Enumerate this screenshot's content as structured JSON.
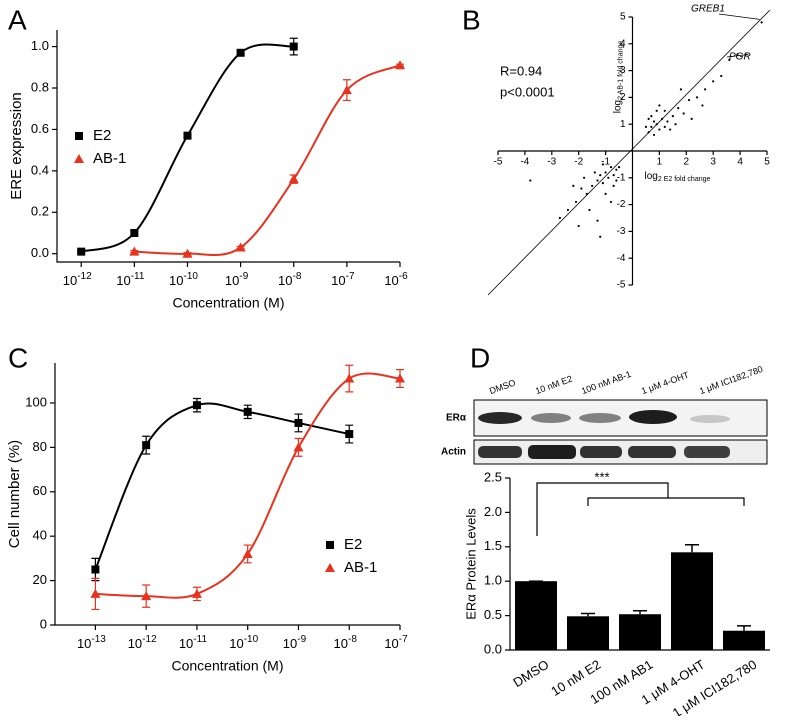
{
  "chart_data": [
    {
      "type": "line",
      "label": "A",
      "xlabel": "Concentration (M)",
      "ylabel": "ERE expression",
      "xscale": "log",
      "xlim": [
        3.5e-13,
        1e-06
      ],
      "ylim": [
        -0.04,
        1.08
      ],
      "xticks": [
        {
          "value": 1e-12,
          "label": "10-12"
        },
        {
          "value": 1e-11,
          "label": "10-11"
        },
        {
          "value": 1e-10,
          "label": "10-10"
        },
        {
          "value": 1e-09,
          "label": "10-9"
        },
        {
          "value": 1e-08,
          "label": "10-8"
        },
        {
          "value": 1e-07,
          "label": "10-7"
        },
        {
          "value": 1e-06,
          "label": "10-6"
        }
      ],
      "yticks": [
        {
          "value": 0,
          "label": "0.0"
        },
        0.2,
        0.4,
        0.6,
        0.8,
        {
          "value": 1,
          "label": "1.0"
        }
      ],
      "legend": "center left",
      "series": [
        {
          "name": "E2",
          "color": "#000000",
          "marker": "square",
          "x": [
            1e-12,
            1e-11,
            1e-10,
            1e-09,
            1e-08
          ],
          "values": [
            0.01,
            0.1,
            0.57,
            0.97,
            1.0
          ],
          "errors": [
            0.005,
            0.01,
            0.01,
            0.01,
            0.04
          ]
        },
        {
          "name": "AB-1",
          "color": "#e8321e",
          "marker": "triangle",
          "x": [
            1e-11,
            1e-10,
            1e-09,
            1e-08,
            1e-07,
            1e-06
          ],
          "values": [
            0.01,
            0.0,
            0.03,
            0.36,
            0.79,
            0.91
          ],
          "errors": [
            0.005,
            0.005,
            0.005,
            0.02,
            0.05,
            0.005
          ]
        }
      ]
    },
    {
      "type": "scatter",
      "label": "B",
      "xlabel": "log2 E2 fold change",
      "ylabel": "log2 AB-1 fold change",
      "xlim": [
        -5,
        5
      ],
      "ylim": [
        -5,
        5
      ],
      "xticks": [
        -5,
        -4,
        -3,
        -2,
        -1,
        1,
        2,
        3,
        4,
        5
      ],
      "yticks": [
        -5,
        -4,
        -3,
        -2,
        -1,
        1,
        2,
        3,
        4,
        5
      ],
      "annotations": [
        "R=0.94",
        "p<0.0001",
        "GREB1",
        "PGR"
      ],
      "color": "#000000",
      "x": [
        0.6,
        0.7,
        0.8,
        0.9,
        1.0,
        1.1,
        1.2,
        0.7,
        0.9,
        1.3,
        1.5,
        1.4,
        1.7,
        1.9,
        2.1,
        2.4,
        2.7,
        3.0,
        3.3,
        2.2,
        1.8,
        1.0,
        0.8,
        1.6,
        2.6,
        3.6,
        3.9,
        0.6,
        1.2,
        0.5,
        -0.6,
        -0.7,
        -0.8,
        -0.9,
        -1.0,
        -1.1,
        -1.2,
        -0.7,
        -1.3,
        -1.5,
        -1.4,
        -1.7,
        -1.9,
        -2.1,
        -2.4,
        -2.7,
        -1.6,
        -1.0,
        -0.8,
        -1.8,
        -2.2,
        -0.6,
        -1.3,
        -1.1,
        -3.8,
        -1.2,
        -2.0,
        -0.5,
        4.8,
        4.2
      ],
      "y": [
        0.7,
        0.9,
        0.6,
        1.0,
        0.8,
        1.2,
        0.9,
        1.3,
        1.5,
        1.1,
        1.3,
        0.8,
        1.6,
        1.4,
        1.9,
        2.0,
        2.3,
        2.6,
        2.8,
        1.2,
        2.3,
        1.7,
        1.1,
        1.0,
        1.7,
        3.4,
        3.6,
        1.2,
        1.5,
        0.9,
        -0.7,
        -0.9,
        -0.6,
        -1.0,
        -0.8,
        -1.2,
        -0.9,
        -1.3,
        -1.1,
        -1.3,
        -0.8,
        -1.6,
        -1.4,
        -1.9,
        -2.2,
        -2.5,
        -2.2,
        -1.6,
        -1.9,
        -1.0,
        -1.3,
        -1.1,
        -2.6,
        -0.5,
        -1.1,
        -3.2,
        -2.8,
        -0.6,
        4.8,
        3.6
      ]
    },
    {
      "type": "line",
      "label": "C",
      "xlabel": "Concentration (M)",
      "ylabel": "Cell number (%)",
      "xscale": "log",
      "xlim": [
        1.6e-14,
        1e-07
      ],
      "ylim": [
        0,
        118
      ],
      "xticks": [
        {
          "value": 1e-13,
          "label": "10-13"
        },
        {
          "value": 1e-12,
          "label": "10-12"
        },
        {
          "value": 1e-11,
          "label": "10-11"
        },
        {
          "value": 1e-10,
          "label": "10-10"
        },
        {
          "value": 1e-09,
          "label": "10-9"
        },
        {
          "value": 1e-08,
          "label": "10-8"
        },
        {
          "value": 1e-07,
          "label": "10-7"
        }
      ],
      "yticks": [
        0,
        20,
        40,
        60,
        80,
        100
      ],
      "legend": "lower right",
      "series": [
        {
          "name": "E2",
          "color": "#000000",
          "marker": "square",
          "x": [
            1e-13,
            1e-12,
            1e-11,
            1e-10,
            1e-09,
            1e-08
          ],
          "values": [
            25,
            81,
            99,
            96,
            91,
            86
          ],
          "errors": [
            5,
            4,
            3,
            3,
            4,
            4
          ]
        },
        {
          "name": "AB-1",
          "color": "#e8321e",
          "marker": "triangle",
          "x": [
            1e-13,
            1e-12,
            1e-11,
            1e-10,
            1e-09,
            1e-08,
            1e-07
          ],
          "values": [
            14,
            13,
            14,
            32,
            80,
            111,
            111
          ],
          "errors": [
            7,
            5,
            3,
            4,
            4,
            6,
            4
          ]
        }
      ]
    },
    {
      "type": "bar",
      "label": "D",
      "ylabel": "ERα Protein Levels",
      "significance": "***",
      "categories": [
        "DMSO",
        "10 nM E2",
        "100 nM AB1",
        "1 μM 4-OHT",
        "1 μM ICI182,780"
      ],
      "values": [
        1.0,
        0.49,
        0.52,
        1.42,
        0.28
      ],
      "errors": [
        0,
        0.04,
        0.05,
        0.11,
        0.07
      ],
      "color": "#000000",
      "ylim": [
        0,
        2.5
      ],
      "yticks": [
        {
          "value": 0,
          "label": "0.0"
        },
        0.5,
        {
          "value": 1,
          "label": "1.0"
        },
        1.5,
        {
          "value": 2,
          "label": "2.0"
        },
        2.5
      ]
    }
  ],
  "blot": {
    "lanes": [
      "DMSO",
      "10 nM E2",
      "100 nM AB-1",
      "1 μM 4-OHT",
      "1 μM ICI182,780"
    ],
    "rows": [
      "ERα",
      "Actin"
    ]
  }
}
